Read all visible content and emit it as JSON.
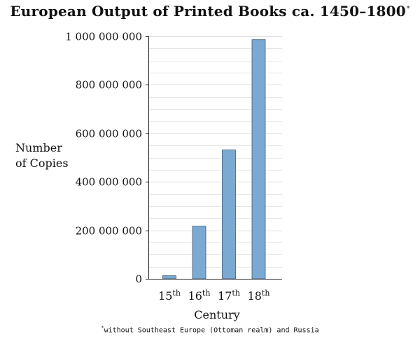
{
  "chart_data": {
    "type": "bar",
    "title": "European Output of Printed Books ca. 1450–1800",
    "title_marker": "*",
    "categories": [
      "15th",
      "16th",
      "17th",
      "18th"
    ],
    "category_parts": [
      {
        "num": "15",
        "suffix": "th"
      },
      {
        "num": "16",
        "suffix": "th"
      },
      {
        "num": "17",
        "suffix": "th"
      },
      {
        "num": "18",
        "suffix": "th"
      }
    ],
    "values": [
      12600000,
      217400000,
      531300000,
      986400000
    ],
    "xlabel": "Century",
    "ylabel_lines": [
      "Number",
      "of Copies"
    ],
    "ylim": [
      0,
      1000000000
    ],
    "yticks": [
      0,
      200000000,
      400000000,
      600000000,
      800000000,
      1000000000
    ],
    "ytick_labels": [
      "0",
      "200 000 000",
      "400 000 000",
      "600 000 000",
      "800 000 000",
      "1 000 000 000"
    ],
    "minor_gridlines": true,
    "minor_step": 50000000,
    "grid": "horizontal",
    "bar_color": "#7aaad2",
    "bar_edge_color": "#3d5a78",
    "grid_color": "#dcdcdc"
  },
  "footnote": {
    "marker": "*",
    "text": "without Southeast Europe (Ottoman realm) and Russia"
  }
}
